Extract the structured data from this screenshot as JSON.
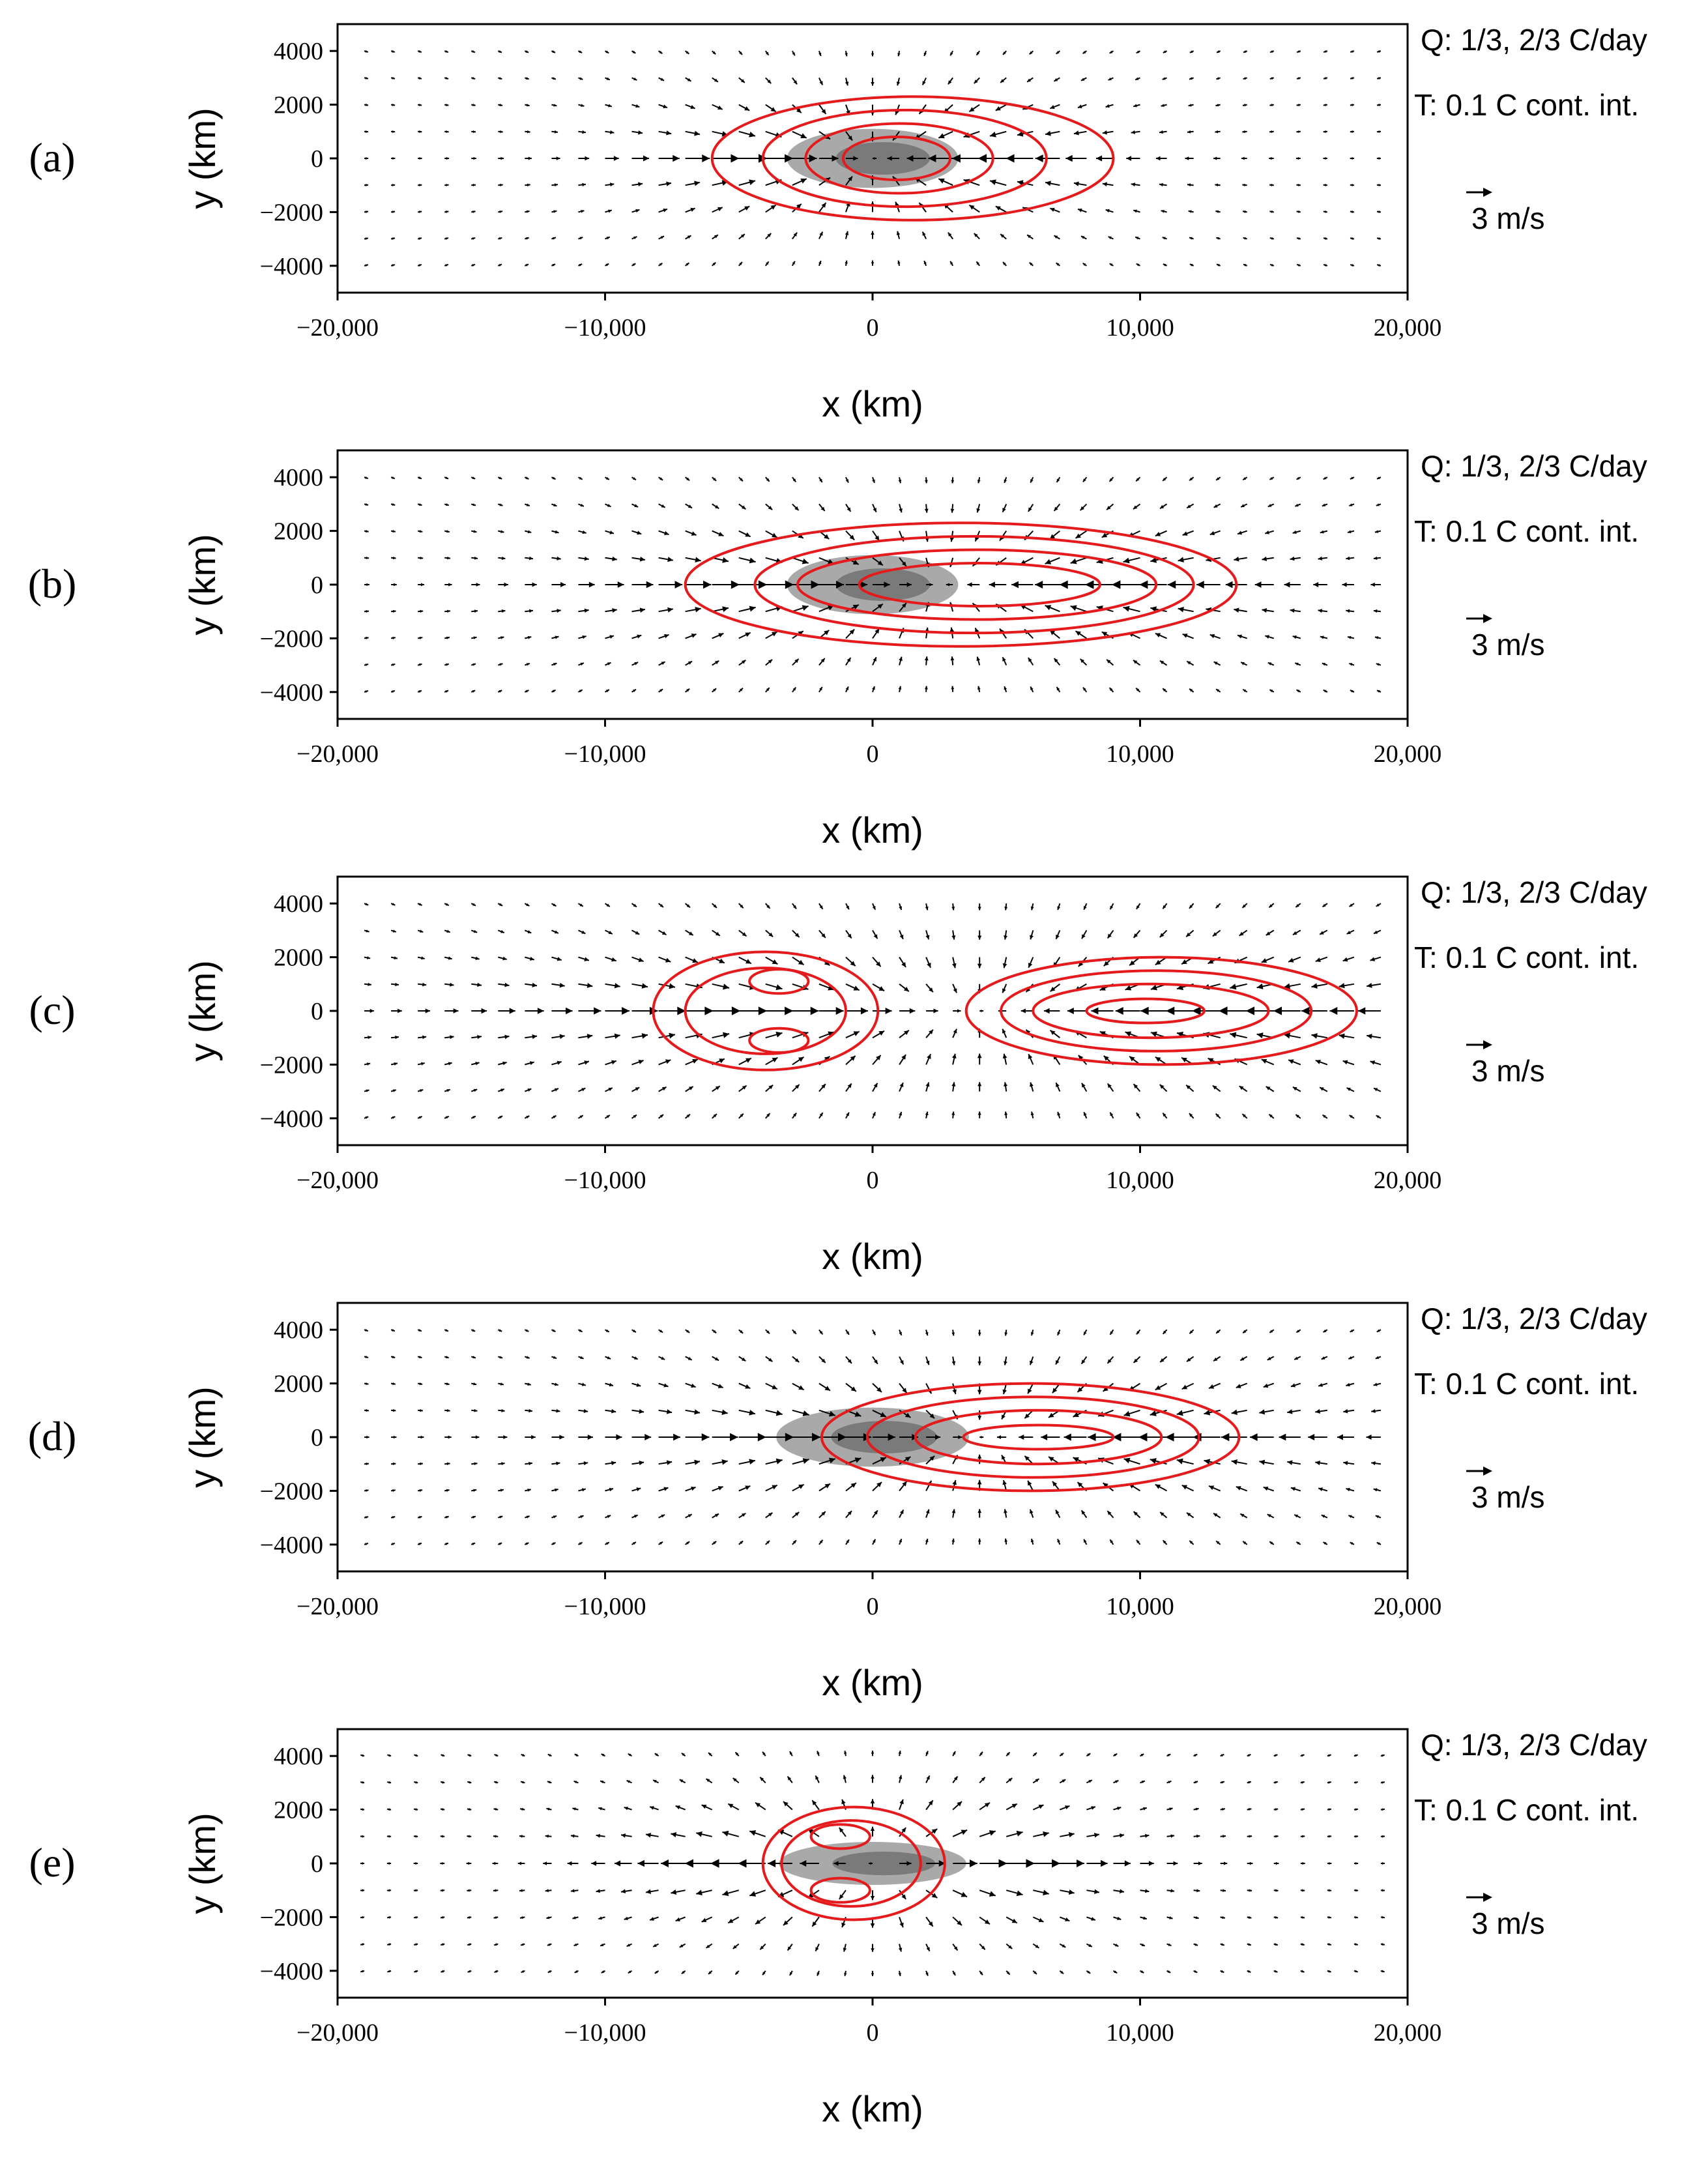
{
  "chart_data": [
    {
      "type": "vector-field-contour",
      "panel_label": "(a)",
      "xlabel": "x (km)",
      "ylabel": "y (km)",
      "xlim": [
        -20000,
        20000
      ],
      "ylim": [
        -5000,
        5000
      ],
      "xticks": [
        -20000,
        -10000,
        0,
        10000,
        20000
      ],
      "xtick_labels": [
        "−20,000",
        "−10,000",
        "0",
        "10,000",
        "20,000"
      ],
      "yticks": [
        4000,
        2000,
        0,
        -2000,
        -4000
      ],
      "ytick_labels": [
        "4000",
        "2000",
        "0",
        "−2000",
        "−4000"
      ],
      "annotations": [
        "Q: 1/3, 2/3 C/day",
        "T: 0.1 C cont. int.",
        "3 m/s"
      ],
      "heating": {
        "center_x": 0,
        "center_y": 0,
        "ax": 3200,
        "ay": 1100
      },
      "circulation": {
        "center_x": 0,
        "center_y": 0,
        "ax": 6500,
        "ay": 2200,
        "sign": 1
      },
      "contours": [
        {
          "cx": 1500,
          "cy": 0,
          "ax": 7500,
          "ay": 2300
        },
        {
          "cx": 1200,
          "cy": 0,
          "ax": 5300,
          "ay": 1800
        },
        {
          "cx": 1000,
          "cy": 0,
          "ax": 3500,
          "ay": 1300
        },
        {
          "cx": 900,
          "cy": 0,
          "ax": 2000,
          "ay": 800
        }
      ]
    },
    {
      "type": "vector-field-contour",
      "panel_label": "(b)",
      "xlabel": "x (km)",
      "ylabel": "y (km)",
      "xlim": [
        -20000,
        20000
      ],
      "ylim": [
        -5000,
        5000
      ],
      "xticks": [
        -20000,
        -10000,
        0,
        10000,
        20000
      ],
      "xtick_labels": [
        "−20,000",
        "−10,000",
        "0",
        "10,000",
        "20,000"
      ],
      "yticks": [
        4000,
        2000,
        0,
        -2000,
        -4000
      ],
      "ytick_labels": [
        "4000",
        "2000",
        "0",
        "−2000",
        "−4000"
      ],
      "annotations": [
        "Q: 1/3, 2/3 C/day",
        "T: 0.1 C cont. int.",
        "3 m/s"
      ],
      "heating": {
        "center_x": 0,
        "center_y": 0,
        "ax": 3200,
        "ay": 1100
      },
      "circulation": {
        "center_x": 2500,
        "center_y": 0,
        "ax": 9500,
        "ay": 2400,
        "sign": 1
      },
      "contours": [
        {
          "cx": 3300,
          "cy": 0,
          "ax": 10300,
          "ay": 2300
        },
        {
          "cx": 3800,
          "cy": 0,
          "ax": 8200,
          "ay": 1800
        },
        {
          "cx": 3900,
          "cy": 0,
          "ax": 6700,
          "ay": 1300
        },
        {
          "cx": 4000,
          "cy": 0,
          "ax": 4500,
          "ay": 800
        }
      ]
    },
    {
      "type": "vector-field-contour",
      "panel_label": "(c)",
      "xlabel": "x (km)",
      "ylabel": "y (km)",
      "xlim": [
        -20000,
        20000
      ],
      "ylim": [
        -5000,
        5000
      ],
      "xticks": [
        -20000,
        -10000,
        0,
        10000,
        20000
      ],
      "xtick_labels": [
        "−20,000",
        "−10,000",
        "0",
        "10,000",
        "20,000"
      ],
      "yticks": [
        4000,
        2000,
        0,
        -2000,
        -4000
      ],
      "ytick_labels": [
        "4000",
        "2000",
        "0",
        "−2000",
        "−4000"
      ],
      "annotations": [
        "Q: 1/3, 2/3 C/day",
        "T: 0.1 C cont. int.",
        "3 m/s"
      ],
      "heating": null,
      "circulation": {
        "center_x": 4000,
        "center_y": 0,
        "ax": 13000,
        "ay": 2600,
        "sign": 1
      },
      "contours": [
        {
          "cx": -4000,
          "cy": 0,
          "ax": 4200,
          "ay": 2200
        },
        {
          "cx": -4000,
          "cy": 0,
          "ax": 3000,
          "ay": 1600
        },
        {
          "cx": -3500,
          "cy": 1100,
          "ax": 1100,
          "ay": 450
        },
        {
          "cx": -3500,
          "cy": -1100,
          "ax": 1100,
          "ay": 450
        },
        {
          "cx": 10800,
          "cy": 0,
          "ax": 7300,
          "ay": 2000
        },
        {
          "cx": 10600,
          "cy": 0,
          "ax": 5800,
          "ay": 1500
        },
        {
          "cx": 10400,
          "cy": 0,
          "ax": 4400,
          "ay": 1000
        },
        {
          "cx": 10200,
          "cy": 0,
          "ax": 2200,
          "ay": 450
        }
      ]
    },
    {
      "type": "vector-field-contour",
      "panel_label": "(d)",
      "xlabel": "x (km)",
      "ylabel": "y (km)",
      "xlim": [
        -20000,
        20000
      ],
      "ylim": [
        -5000,
        5000
      ],
      "xticks": [
        -20000,
        -10000,
        0,
        10000,
        20000
      ],
      "xtick_labels": [
        "−20,000",
        "−10,000",
        "0",
        "10,000",
        "20,000"
      ],
      "yticks": [
        4000,
        2000,
        0,
        -2000,
        -4000
      ],
      "ytick_labels": [
        "4000",
        "2000",
        "0",
        "−2000",
        "−4000"
      ],
      "annotations": [
        "Q: 1/3, 2/3 C/day",
        "T: 0.1 C cont. int.",
        "3 m/s"
      ],
      "heating": {
        "center_x": 0,
        "center_y": 0,
        "ax": 3600,
        "ay": 1100
      },
      "circulation": {
        "center_x": 4000,
        "center_y": 0,
        "ax": 10000,
        "ay": 2400,
        "sign": 1
      },
      "contours": [
        {
          "cx": 5900,
          "cy": 0,
          "ax": 7800,
          "ay": 2000
        },
        {
          "cx": 6000,
          "cy": 0,
          "ax": 6200,
          "ay": 1500
        },
        {
          "cx": 6200,
          "cy": 0,
          "ax": 4600,
          "ay": 1000
        },
        {
          "cx": 6200,
          "cy": 0,
          "ax": 2800,
          "ay": 450
        }
      ]
    },
    {
      "type": "vector-field-contour",
      "panel_label": "(e)",
      "xlabel": "x (km)",
      "ylabel": "y (km)",
      "xlim": [
        -20000,
        20000
      ],
      "ylim": [
        -5000,
        5000
      ],
      "xticks": [
        -20000,
        -10000,
        0,
        10000,
        20000
      ],
      "xtick_labels": [
        "−20,000",
        "−10,000",
        "0",
        "10,000",
        "20,000"
      ],
      "yticks": [
        4000,
        2000,
        0,
        -2000,
        -4000
      ],
      "ytick_labels": [
        "4000",
        "2000",
        "0",
        "−2000",
        "−4000"
      ],
      "annotations": [
        "Q: 1/3, 2/3 C/day",
        "T: 0.1 C cont. int.",
        "3 m/s"
      ],
      "heating": {
        "center_x": 0,
        "center_y": 0,
        "ax": 3500,
        "ay": 800
      },
      "circulation": {
        "center_x": 0,
        "center_y": 0,
        "ax": 6500,
        "ay": 2200,
        "sign": -1
      },
      "contours": [
        {
          "cx": -700,
          "cy": 0,
          "ax": 3400,
          "ay": 2100
        },
        {
          "cx": -800,
          "cy": 0,
          "ax": 2600,
          "ay": 1600
        },
        {
          "cx": -1200,
          "cy": 1000,
          "ax": 1100,
          "ay": 450
        },
        {
          "cx": -1200,
          "cy": -1000,
          "ax": 1100,
          "ay": 450
        }
      ]
    }
  ]
}
